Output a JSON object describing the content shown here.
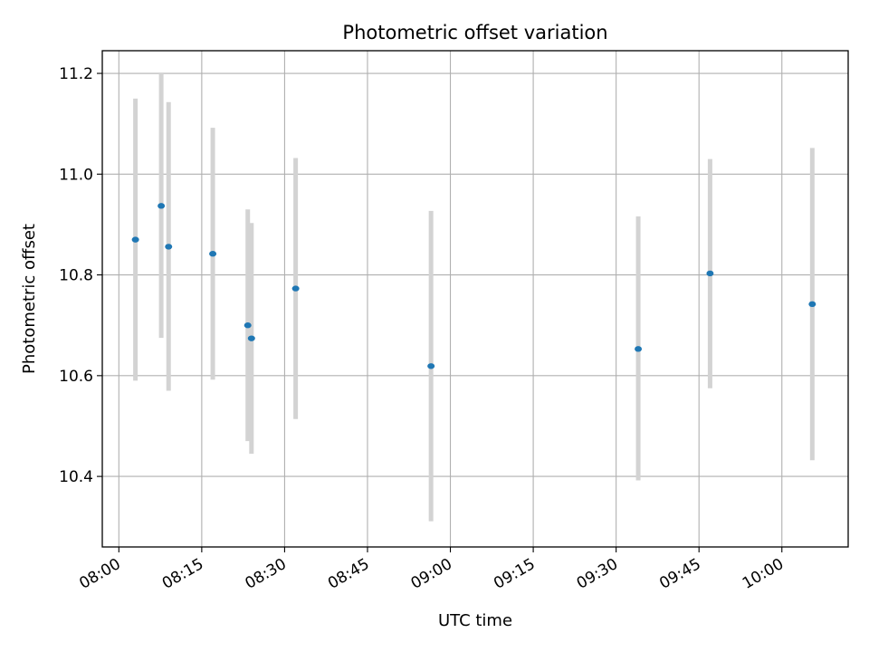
{
  "chart_data": {
    "type": "scatter",
    "title": "Photometric offset variation",
    "xlabel": "UTC time",
    "ylabel": "Photometric offset",
    "x_ticks": [
      "08:00",
      "08:15",
      "08:30",
      "08:45",
      "09:00",
      "09:15",
      "09:30",
      "09:45",
      "10:00"
    ],
    "y_ticks": [
      "10.4",
      "10.6",
      "10.8",
      "11.0",
      "11.2"
    ],
    "xlim": [
      "07:57",
      "10:12"
    ],
    "ylim": [
      10.26,
      11.245
    ],
    "grid": true,
    "colors": {
      "point": "#1f77b4",
      "errorbar": "#d3d3d3",
      "grid": "#b0b0b0"
    },
    "points": [
      {
        "x": "08:03",
        "y": 10.87,
        "err_low": 10.59,
        "err_high": 11.15
      },
      {
        "x": "08:07:40",
        "y": 10.937,
        "err_low": 10.675,
        "err_high": 11.2
      },
      {
        "x": "08:09",
        "y": 10.856,
        "err_low": 10.57,
        "err_high": 11.143
      },
      {
        "x": "08:17",
        "y": 10.842,
        "err_low": 10.592,
        "err_high": 11.092
      },
      {
        "x": "08:23:20",
        "y": 10.7,
        "err_low": 10.47,
        "err_high": 10.93
      },
      {
        "x": "08:24",
        "y": 10.674,
        "err_low": 10.445,
        "err_high": 10.903
      },
      {
        "x": "08:32",
        "y": 10.773,
        "err_low": 10.514,
        "err_high": 11.032
      },
      {
        "x": "08:56:30",
        "y": 10.619,
        "err_low": 10.311,
        "err_high": 10.927
      },
      {
        "x": "09:34",
        "y": 10.653,
        "err_low": 10.392,
        "err_high": 10.916
      },
      {
        "x": "09:47",
        "y": 10.803,
        "err_low": 10.575,
        "err_high": 11.03
      },
      {
        "x": "10:05.5",
        "y": 10.742,
        "err_low": 10.432,
        "err_high": 11.052
      }
    ]
  }
}
